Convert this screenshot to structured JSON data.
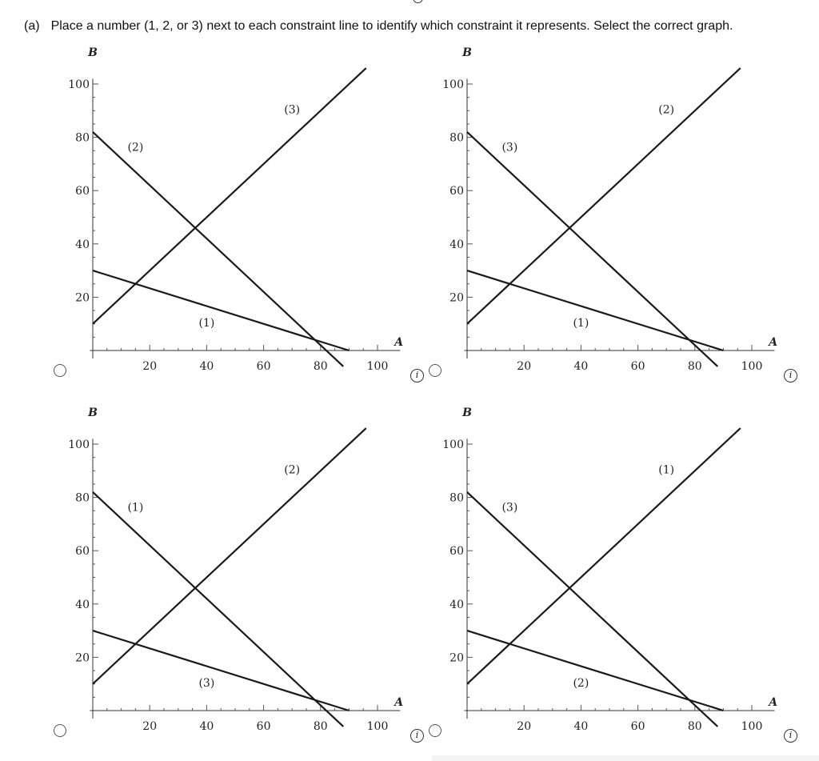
{
  "question": {
    "part": "(a)",
    "text": "Place a number (1, 2, or 3) next to each constraint line to identify which constraint it represents. Select the correct graph."
  },
  "info_icon_glyph": "i",
  "chart_data": [
    {
      "type": "line",
      "xlabel": "A",
      "ylabel": "B",
      "xlim": [
        0,
        110
      ],
      "ylim": [
        0,
        105
      ],
      "xticks": [
        "20",
        "40",
        "60",
        "80",
        "100"
      ],
      "yticks": [
        "20",
        "40",
        "60",
        "80",
        "100"
      ],
      "series": [
        {
          "points": [
            [
              0,
              82
            ],
            [
              88,
              -6
            ]
          ],
          "label": "(2)",
          "label_at": [
            15,
            75
          ]
        },
        {
          "points": [
            [
              0,
              10
            ],
            [
              96,
              106
            ]
          ],
          "label": "(3)",
          "label_at": [
            70,
            89
          ]
        },
        {
          "points": [
            [
              0,
              30
            ],
            [
              90,
              0
            ]
          ],
          "label": "(1)",
          "label_at": [
            40,
            9
          ]
        }
      ],
      "grid": false
    },
    {
      "type": "line",
      "xlabel": "A",
      "ylabel": "B",
      "xlim": [
        0,
        110
      ],
      "ylim": [
        0,
        105
      ],
      "xticks": [
        "20",
        "40",
        "60",
        "80",
        "100"
      ],
      "yticks": [
        "20",
        "40",
        "60",
        "80",
        "100"
      ],
      "series": [
        {
          "points": [
            [
              0,
              82
            ],
            [
              88,
              -6
            ]
          ],
          "label": "(3)",
          "label_at": [
            15,
            75
          ]
        },
        {
          "points": [
            [
              0,
              10
            ],
            [
              96,
              106
            ]
          ],
          "label": "(2)",
          "label_at": [
            70,
            89
          ]
        },
        {
          "points": [
            [
              0,
              30
            ],
            [
              90,
              0
            ]
          ],
          "label": "(1)",
          "label_at": [
            40,
            9
          ]
        }
      ],
      "grid": false
    },
    {
      "type": "line",
      "xlabel": "A",
      "ylabel": "B",
      "xlim": [
        0,
        110
      ],
      "ylim": [
        0,
        105
      ],
      "xticks": [
        "20",
        "40",
        "60",
        "80",
        "100"
      ],
      "yticks": [
        "20",
        "40",
        "60",
        "80",
        "100"
      ],
      "series": [
        {
          "points": [
            [
              0,
              82
            ],
            [
              88,
              -6
            ]
          ],
          "label": "(1)",
          "label_at": [
            15,
            75
          ]
        },
        {
          "points": [
            [
              0,
              10
            ],
            [
              96,
              106
            ]
          ],
          "label": "(2)",
          "label_at": [
            70,
            89
          ]
        },
        {
          "points": [
            [
              0,
              30
            ],
            [
              90,
              0
            ]
          ],
          "label": "(3)",
          "label_at": [
            40,
            9
          ]
        }
      ],
      "grid": false
    },
    {
      "type": "line",
      "xlabel": "A",
      "ylabel": "B",
      "xlim": [
        0,
        110
      ],
      "ylim": [
        0,
        105
      ],
      "xticks": [
        "20",
        "40",
        "60",
        "80",
        "100"
      ],
      "yticks": [
        "20",
        "40",
        "60",
        "80",
        "100"
      ],
      "series": [
        {
          "points": [
            [
              0,
              82
            ],
            [
              88,
              -6
            ]
          ],
          "label": "(3)",
          "label_at": [
            15,
            75
          ]
        },
        {
          "points": [
            [
              0,
              10
            ],
            [
              96,
              106
            ]
          ],
          "label": "(1)",
          "label_at": [
            70,
            89
          ]
        },
        {
          "points": [
            [
              0,
              30
            ],
            [
              90,
              0
            ]
          ],
          "label": "(2)",
          "label_at": [
            40,
            9
          ]
        }
      ],
      "grid": false
    }
  ]
}
